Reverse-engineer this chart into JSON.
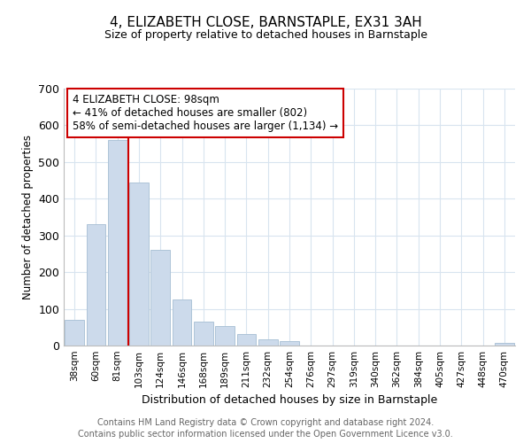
{
  "title": "4, ELIZABETH CLOSE, BARNSTAPLE, EX31 3AH",
  "subtitle": "Size of property relative to detached houses in Barnstaple",
  "xlabel": "Distribution of detached houses by size in Barnstaple",
  "ylabel": "Number of detached properties",
  "bar_labels": [
    "38sqm",
    "60sqm",
    "81sqm",
    "103sqm",
    "124sqm",
    "146sqm",
    "168sqm",
    "189sqm",
    "211sqm",
    "232sqm",
    "254sqm",
    "276sqm",
    "297sqm",
    "319sqm",
    "340sqm",
    "362sqm",
    "384sqm",
    "405sqm",
    "427sqm",
    "448sqm",
    "470sqm"
  ],
  "bar_values": [
    70,
    330,
    560,
    445,
    260,
    125,
    65,
    52,
    32,
    18,
    13,
    0,
    0,
    0,
    0,
    0,
    0,
    0,
    0,
    0,
    8
  ],
  "bar_color": "#ccdaeb",
  "bar_edge_color": "#aec4d8",
  "vline_x_index": 2.5,
  "vline_color": "#cc0000",
  "annotation_line1": "4 ELIZABETH CLOSE: 98sqm",
  "annotation_line2": "← 41% of detached houses are smaller (802)",
  "annotation_line3": "58% of semi-detached houses are larger (1,134) →",
  "annotation_box_color": "#ffffff",
  "annotation_box_edge": "#cc0000",
  "ylim": [
    0,
    700
  ],
  "yticks": [
    0,
    100,
    200,
    300,
    400,
    500,
    600,
    700
  ],
  "footer_line1": "Contains HM Land Registry data © Crown copyright and database right 2024.",
  "footer_line2": "Contains public sector information licensed under the Open Government Licence v3.0.",
  "background_color": "#ffffff",
  "grid_color": "#d8e4ef",
  "title_fontsize": 11,
  "subtitle_fontsize": 9,
  "ylabel_fontsize": 8.5,
  "xlabel_fontsize": 9
}
